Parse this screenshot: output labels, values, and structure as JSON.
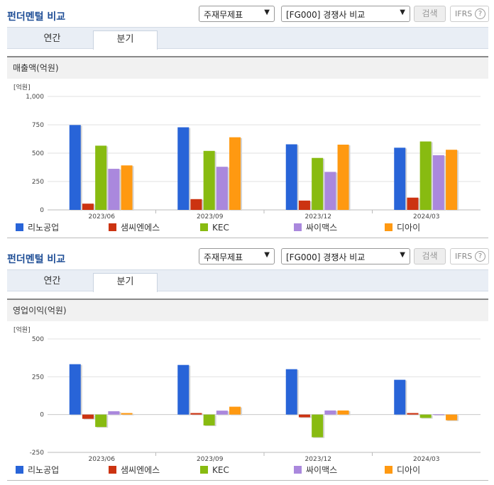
{
  "colors": [
    "#2864d8",
    "#cc3311",
    "#88bb11",
    "#aa88dd",
    "#ff9911"
  ],
  "panels": [
    {
      "title": "펀더멘털 비교",
      "select1": "주재무제표",
      "select2": "[FG000] 경쟁사 비교",
      "search_label": "검색",
      "ifrs_label": "IFRS",
      "help_icon": "?",
      "tabs": [
        "연간",
        "분기"
      ],
      "active_tab": 1,
      "subhead": "매출액(억원)"
    },
    {
      "title": "펀더멘털 비교",
      "select1": "주재무제표",
      "select2": "[FG000] 경쟁사 비교",
      "search_label": "검색",
      "ifrs_label": "IFRS",
      "help_icon": "?",
      "tabs": [
        "연간",
        "분기"
      ],
      "active_tab": 1,
      "subhead": "영업이익(억원)"
    }
  ],
  "chart_data": [
    {
      "type": "bar",
      "unit_label": "[억원]",
      "categories": [
        "2023/06",
        "2023/09",
        "2023/12",
        "2024/03"
      ],
      "ylim": [
        0,
        1000
      ],
      "yticks": [
        0,
        250,
        500,
        750,
        1000
      ],
      "ytick_labels": [
        "0",
        "250",
        "500",
        "750",
        "1,000"
      ],
      "series": [
        {
          "name": "리노공업",
          "values": [
            748,
            728,
            578,
            548
          ]
        },
        {
          "name": "샘씨엔에스",
          "values": [
            55,
            95,
            82,
            108
          ]
        },
        {
          "name": "KEC",
          "values": [
            566,
            520,
            458,
            603
          ]
        },
        {
          "name": "싸이맥스",
          "values": [
            362,
            380,
            335,
            482
          ]
        },
        {
          "name": "디아이",
          "values": [
            392,
            640,
            575,
            530
          ]
        }
      ]
    },
    {
      "type": "bar",
      "unit_label": "[억원]",
      "categories": [
        "2023/06",
        "2023/09",
        "2023/12",
        "2024/03"
      ],
      "ylim": [
        -250,
        500
      ],
      "yticks": [
        -250,
        0,
        250,
        500
      ],
      "ytick_labels": [
        "-250",
        "0",
        "250",
        "500"
      ],
      "series": [
        {
          "name": "리노공업",
          "values": [
            333,
            328,
            300,
            230
          ]
        },
        {
          "name": "샘씨엔에스",
          "values": [
            -28,
            10,
            -18,
            10
          ]
        },
        {
          "name": "KEC",
          "values": [
            -82,
            -72,
            -150,
            -22
          ]
        },
        {
          "name": "싸이맥스",
          "values": [
            22,
            26,
            27,
            2
          ]
        },
        {
          "name": "디아이",
          "values": [
            10,
            52,
            27,
            -38
          ]
        }
      ]
    }
  ]
}
